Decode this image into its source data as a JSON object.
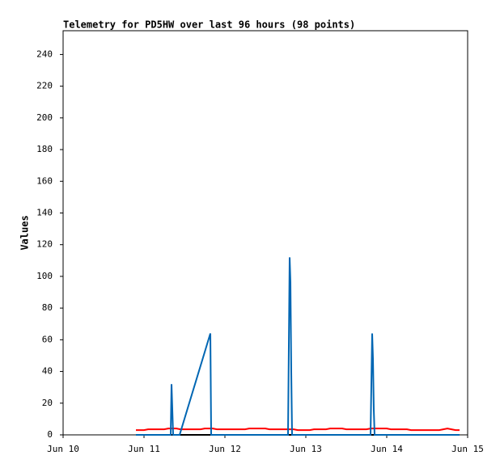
{
  "chart_data": {
    "type": "line",
    "title": "Telemetry for PD5HW over last 96 hours (98 points)",
    "ylabel": "Values",
    "xlim": [
      0,
      5
    ],
    "xticks": [
      {
        "value": 0,
        "label": "Jun 10"
      },
      {
        "value": 1,
        "label": "Jun 11"
      },
      {
        "value": 2,
        "label": "Jun 12"
      },
      {
        "value": 3,
        "label": "Jun 13"
      },
      {
        "value": 4,
        "label": "Jun 14"
      },
      {
        "value": 5,
        "label": "Jun 15"
      }
    ],
    "ylim": [
      0,
      255
    ],
    "yticks": [
      0,
      20,
      40,
      60,
      80,
      100,
      120,
      140,
      160,
      180,
      200,
      220,
      240
    ],
    "series": [
      {
        "color": "#000000",
        "x": [
          0.9,
          4.9
        ],
        "values": [
          0,
          0
        ]
      },
      {
        "color": "#ff0000",
        "x": [
          0.9,
          1.0,
          1.05,
          1.25,
          1.3,
          1.4,
          1.45,
          1.7,
          1.75,
          1.85,
          1.9,
          2.25,
          2.3,
          2.5,
          2.55,
          2.85,
          2.9,
          3.05,
          3.1,
          3.25,
          3.3,
          3.45,
          3.5,
          3.75,
          3.8,
          4.0,
          4.05,
          4.25,
          4.3,
          4.65,
          4.7,
          4.75,
          4.8,
          4.85,
          4.9
        ],
        "values": [
          3,
          3,
          3.5,
          3.5,
          4,
          4,
          3.5,
          3.5,
          4,
          4,
          3.5,
          3.5,
          4,
          4,
          3.5,
          3.5,
          3,
          3,
          3.5,
          3.5,
          4,
          4,
          3.5,
          3.5,
          4,
          4,
          3.5,
          3.5,
          3,
          3,
          3.5,
          4,
          3.5,
          3,
          3
        ]
      },
      {
        "color": "#0066b3",
        "x": [
          0.9,
          1.33,
          1.34,
          1.35,
          1.36,
          1.44,
          1.82,
          1.83,
          2.78,
          2.79,
          2.8,
          2.81,
          2.82,
          2.83,
          3.8,
          3.81,
          3.82,
          3.83,
          3.84,
          3.85,
          4.9
        ],
        "values": [
          0,
          0,
          32,
          16,
          0,
          0,
          64,
          0,
          0,
          56,
          112,
          96,
          40,
          0,
          0,
          32,
          64,
          48,
          16,
          0,
          0
        ]
      }
    ]
  }
}
